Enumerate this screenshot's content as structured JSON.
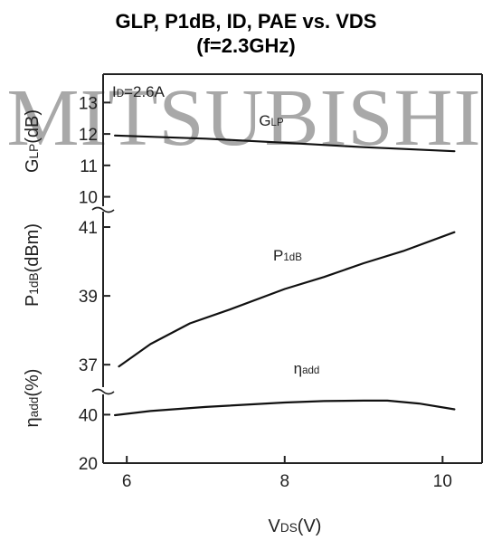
{
  "title": {
    "line1": "GLP, P1dB, ID, PAE vs. VDS",
    "line2": "(f=2.3GHz)"
  },
  "watermark": "MITSUBISHI",
  "chart_data": {
    "type": "line",
    "condition": "ID=2.6A",
    "xlabel": "VDS(V)",
    "x_ticks": [
      6,
      8,
      10
    ],
    "xlim": [
      5.7,
      10.5
    ],
    "panels": [
      {
        "ylabel": "GLP(dB)",
        "ylim": [
          9.7,
          13.5
        ],
        "y_ticks": [
          10,
          11,
          12,
          13
        ],
        "series": [
          {
            "name": "GLP",
            "x": [
              5.85,
              7.0,
              8.0,
              9.0,
              10.15
            ],
            "y": [
              11.95,
              11.85,
              11.72,
              11.58,
              11.45
            ]
          }
        ]
      },
      {
        "ylabel": "P1dB(dBm)",
        "ylim": [
          36.4,
          41.5
        ],
        "y_ticks": [
          37,
          39,
          41
        ],
        "series": [
          {
            "name": "P1dB",
            "x": [
              5.9,
              6.3,
              6.8,
              7.3,
              8.0,
              8.5,
              9.0,
              9.5,
              10.15
            ],
            "y": [
              36.95,
              37.6,
              38.2,
              38.6,
              39.2,
              39.55,
              39.95,
              40.3,
              40.85
            ]
          }
        ]
      },
      {
        "ylabel": "ηadd(%)",
        "ylim": [
          20,
          48
        ],
        "y_ticks": [
          20,
          40
        ],
        "series": [
          {
            "name": "ηadd",
            "x": [
              5.85,
              6.3,
              7.0,
              8.0,
              8.5,
              9.0,
              9.3,
              9.7,
              10.15
            ],
            "y": [
              39.8,
              41.5,
              43.2,
              45.0,
              45.6,
              45.8,
              45.8,
              44.6,
              42.2
            ]
          }
        ]
      }
    ]
  }
}
